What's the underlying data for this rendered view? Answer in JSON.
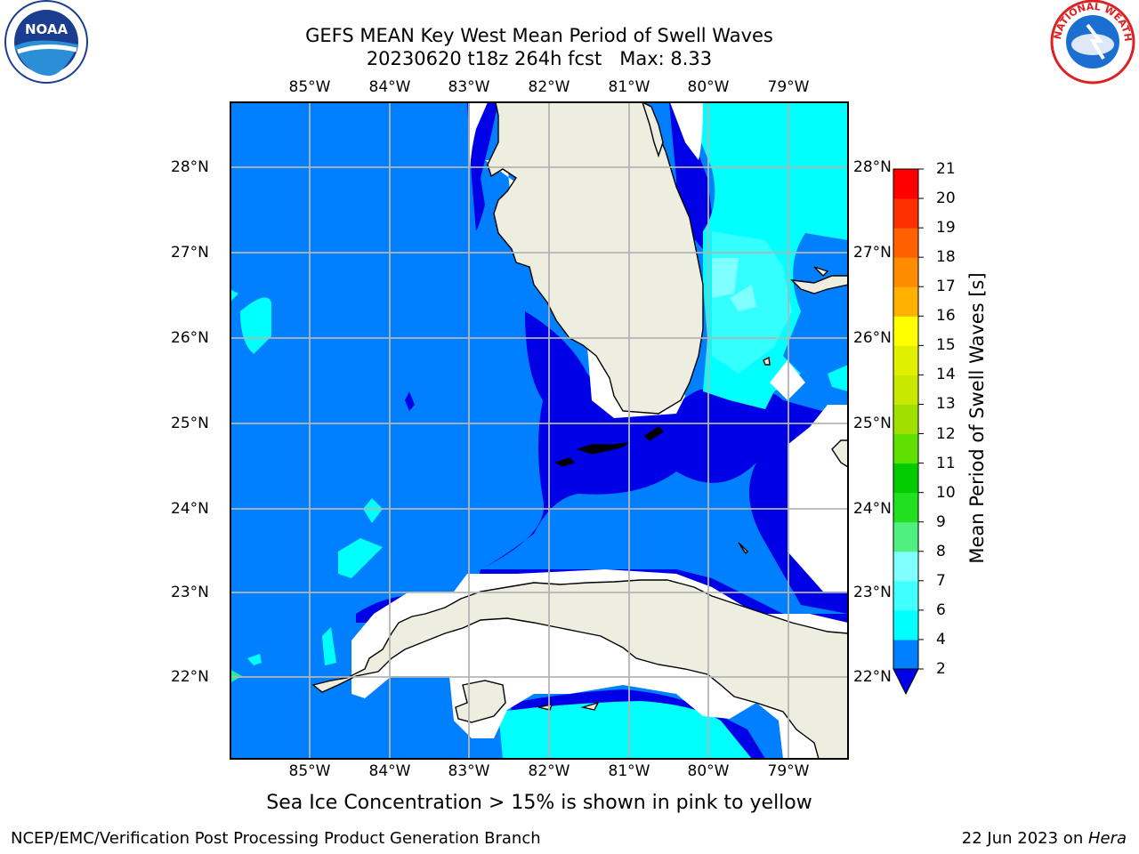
{
  "title": "GEFS MEAN Key West Mean Period of Swell Waves",
  "subtitle": "20230620 t18z 264h fcst   Max: 8.33",
  "logos": {
    "left": "NOAA",
    "right": "NATIONAL WEATHER SERVICE"
  },
  "map": {
    "lon_labels": [
      "85°W",
      "84°W",
      "83°W",
      "82°W",
      "81°W",
      "80°W",
      "79°W"
    ],
    "lat_labels": [
      "28°N",
      "27°N",
      "26°N",
      "25°N",
      "24°N",
      "23°N",
      "22°N"
    ],
    "land_color": "#eeeee0",
    "field_colors": {
      "lt_blue": "#0080ff",
      "dk_blue": "#0000e6",
      "cyan": "#00ffff",
      "cyan2": "#3ff",
      "white": "#ffffff"
    }
  },
  "colorbar": {
    "label": "Mean Period of Swell Waves [s]",
    "ticks": [
      "2",
      "4",
      "6",
      "7",
      "8",
      "9",
      "10",
      "11",
      "12",
      "13",
      "14",
      "15",
      "16",
      "17",
      "18",
      "19",
      "20",
      "21"
    ],
    "colors": [
      "#0080ff",
      "#00ffff",
      "#40ffff",
      "#80ffff",
      "#a0ffff",
      "#50f080",
      "#20e020",
      "#00cc00",
      "#60e000",
      "#a0e000",
      "#c8e800",
      "#e0f000",
      "#ffff00",
      "#ffd700",
      "#ffb000",
      "#ff8c00",
      "#ff6000",
      "#ff3000",
      "#ff0000"
    ],
    "extend_color": "#0000e6"
  },
  "note": "Sea Ice Concentration > 15% is shown in pink to yellow",
  "footer": {
    "org": "NCEP/EMC/Verification Post Processing Product Generation Branch",
    "date": "22 Jun 2023 on ",
    "machine": "Hera"
  }
}
